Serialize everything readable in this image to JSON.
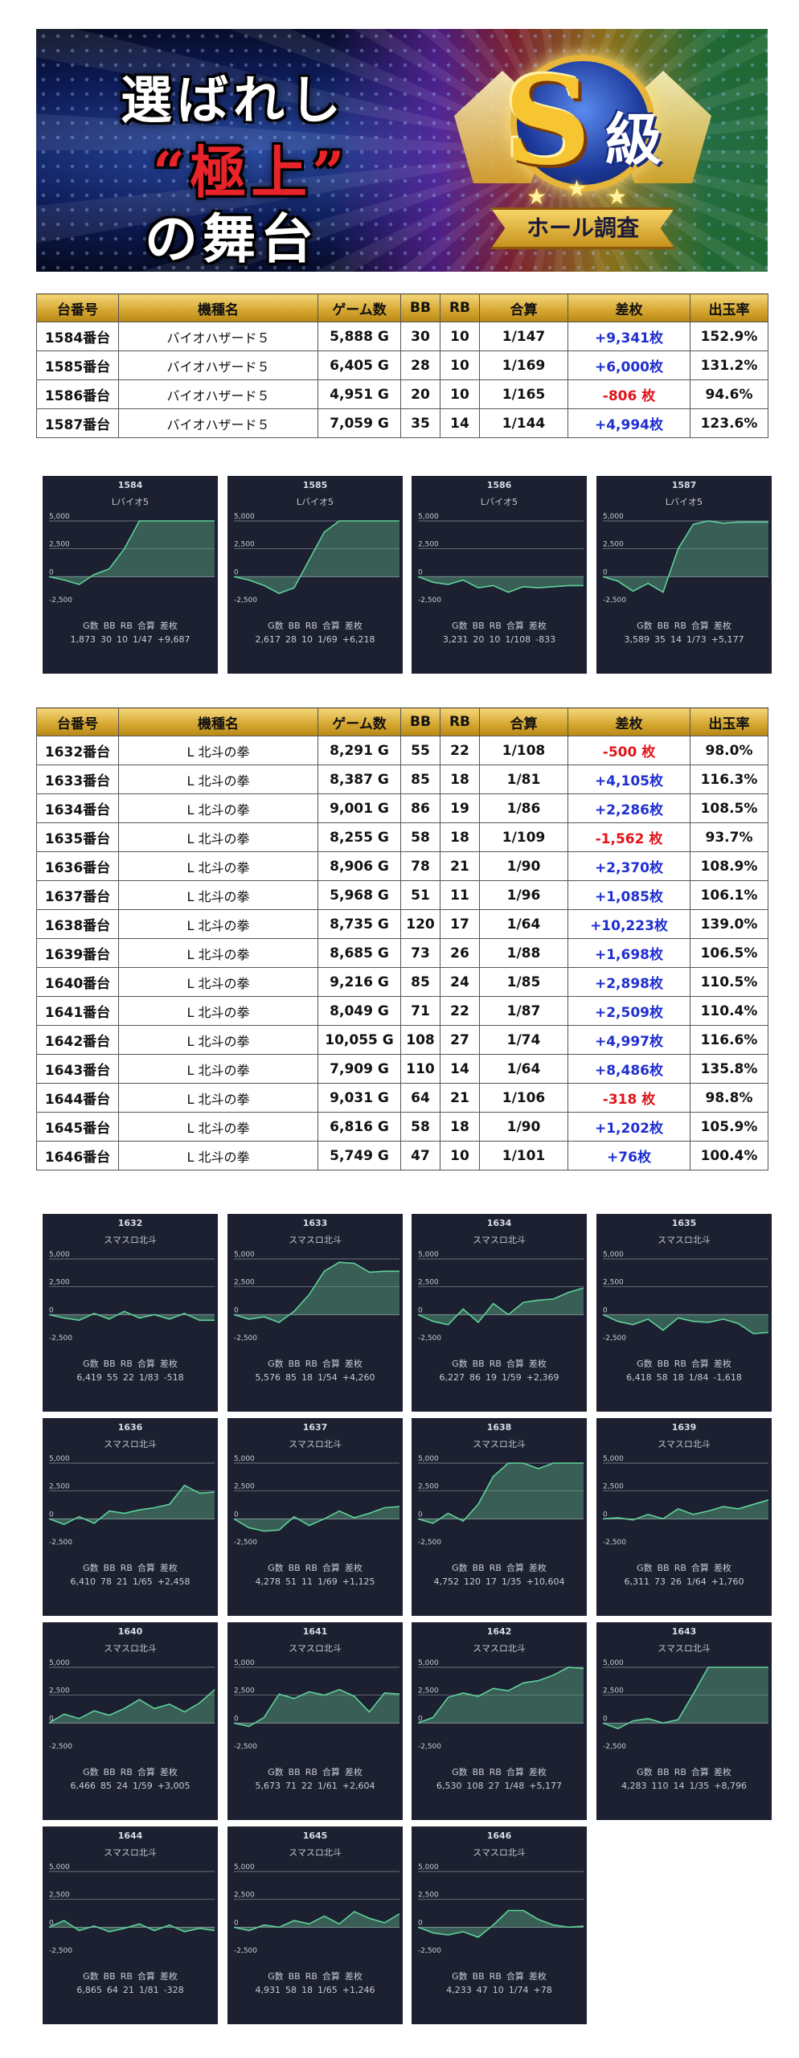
{
  "banner": {
    "title_line1": "選ばれし",
    "title_line2": "“極上”",
    "title_line3": "の舞台",
    "emblem_letter": "S",
    "emblem_kanji": "級",
    "ribbon_text": "ホール調査"
  },
  "table_headers": [
    "台番号",
    "機種名",
    "ゲーム数",
    "BB",
    "RB",
    "合算",
    "差枚",
    "出玉率"
  ],
  "table1_rows": [
    {
      "machine_no": "1584番台",
      "model": "バイオハザード５",
      "games": "5,888 G",
      "bb": "30",
      "rb": "10",
      "combined": "1/147",
      "diff": "+9,341枚",
      "rate": "152.9%",
      "sign": "pos"
    },
    {
      "machine_no": "1585番台",
      "model": "バイオハザード５",
      "games": "6,405 G",
      "bb": "28",
      "rb": "10",
      "combined": "1/169",
      "diff": "+6,000枚",
      "rate": "131.2%",
      "sign": "pos"
    },
    {
      "machine_no": "1586番台",
      "model": "バイオハザード５",
      "games": "4,951 G",
      "bb": "20",
      "rb": "10",
      "combined": "1/165",
      "diff": "-806 枚",
      "rate": "94.6%",
      "sign": "neg"
    },
    {
      "machine_no": "1587番台",
      "model": "バイオハザード５",
      "games": "7,059 G",
      "bb": "35",
      "rb": "14",
      "combined": "1/144",
      "diff": "+4,994枚",
      "rate": "123.6%",
      "sign": "pos"
    }
  ],
  "table2_rows": [
    {
      "machine_no": "1632番台",
      "model": "L 北斗の拳",
      "games": "8,291 G",
      "bb": "55",
      "rb": "22",
      "combined": "1/108",
      "diff": "-500 枚",
      "rate": "98.0%",
      "sign": "neg"
    },
    {
      "machine_no": "1633番台",
      "model": "L 北斗の拳",
      "games": "8,387 G",
      "bb": "85",
      "rb": "18",
      "combined": "1/81",
      "diff": "+4,105枚",
      "rate": "116.3%",
      "sign": "pos"
    },
    {
      "machine_no": "1634番台",
      "model": "L 北斗の拳",
      "games": "9,001 G",
      "bb": "86",
      "rb": "19",
      "combined": "1/86",
      "diff": "+2,286枚",
      "rate": "108.5%",
      "sign": "pos"
    },
    {
      "machine_no": "1635番台",
      "model": "L 北斗の拳",
      "games": "8,255 G",
      "bb": "58",
      "rb": "18",
      "combined": "1/109",
      "diff": "-1,562 枚",
      "rate": "93.7%",
      "sign": "neg"
    },
    {
      "machine_no": "1636番台",
      "model": "L 北斗の拳",
      "games": "8,906 G",
      "bb": "78",
      "rb": "21",
      "combined": "1/90",
      "diff": "+2,370枚",
      "rate": "108.9%",
      "sign": "pos"
    },
    {
      "machine_no": "1637番台",
      "model": "L 北斗の拳",
      "games": "5,968 G",
      "bb": "51",
      "rb": "11",
      "combined": "1/96",
      "diff": "+1,085枚",
      "rate": "106.1%",
      "sign": "pos"
    },
    {
      "machine_no": "1638番台",
      "model": "L 北斗の拳",
      "games": "8,735 G",
      "bb": "120",
      "rb": "17",
      "combined": "1/64",
      "diff": "+10,223枚",
      "rate": "139.0%",
      "sign": "pos"
    },
    {
      "machine_no": "1639番台",
      "model": "L 北斗の拳",
      "games": "8,685 G",
      "bb": "73",
      "rb": "26",
      "combined": "1/88",
      "diff": "+1,698枚",
      "rate": "106.5%",
      "sign": "pos"
    },
    {
      "machine_no": "1640番台",
      "model": "L 北斗の拳",
      "games": "9,216 G",
      "bb": "85",
      "rb": "24",
      "combined": "1/85",
      "diff": "+2,898枚",
      "rate": "110.5%",
      "sign": "pos"
    },
    {
      "machine_no": "1641番台",
      "model": "L 北斗の拳",
      "games": "8,049 G",
      "bb": "71",
      "rb": "22",
      "combined": "1/87",
      "diff": "+2,509枚",
      "rate": "110.4%",
      "sign": "pos"
    },
    {
      "machine_no": "1642番台",
      "model": "L 北斗の拳",
      "games": "10,055 G",
      "bb": "108",
      "rb": "27",
      "combined": "1/74",
      "diff": "+4,997枚",
      "rate": "116.6%",
      "sign": "pos"
    },
    {
      "machine_no": "1643番台",
      "model": "L 北斗の拳",
      "games": "7,909 G",
      "bb": "110",
      "rb": "14",
      "combined": "1/64",
      "diff": "+8,486枚",
      "rate": "135.8%",
      "sign": "pos"
    },
    {
      "machine_no": "1644番台",
      "model": "L 北斗の拳",
      "games": "9,031 G",
      "bb": "64",
      "rb": "21",
      "combined": "1/106",
      "diff": "-318 枚",
      "rate": "98.8%",
      "sign": "neg"
    },
    {
      "machine_no": "1645番台",
      "model": "L 北斗の拳",
      "games": "6,816 G",
      "bb": "58",
      "rb": "18",
      "combined": "1/90",
      "diff": "+1,202枚",
      "rate": "105.9%",
      "sign": "pos"
    },
    {
      "machine_no": "1646番台",
      "model": "L 北斗の拳",
      "games": "5,749 G",
      "bb": "47",
      "rb": "10",
      "combined": "1/101",
      "diff": "+76枚",
      "rate": "100.4%",
      "sign": "pos"
    }
  ],
  "stat_labels": [
    "G数",
    "BB",
    "RB",
    "合算",
    "差枚"
  ],
  "chart_data": [
    {
      "type": "area",
      "number": "1584",
      "name": "Lバイオ5",
      "y_ticks": [
        "5,000",
        "2,500",
        "0",
        "-2,500"
      ],
      "ylim": [
        -2500,
        5000
      ],
      "y": [
        0,
        -300,
        -700,
        200,
        700,
        2500,
        5000,
        5000,
        5000,
        5000,
        5000,
        5000
      ],
      "stats": [
        "1,873",
        "30",
        "10",
        "1/47",
        "+9,687"
      ]
    },
    {
      "type": "area",
      "number": "1585",
      "name": "Lバイオ5",
      "y_ticks": [
        "5,000",
        "2,500",
        "0",
        "-2,500"
      ],
      "ylim": [
        -2500,
        5000
      ],
      "y": [
        0,
        -300,
        -800,
        -1500,
        -1000,
        1500,
        4000,
        5000,
        5000,
        5000,
        5000,
        5000
      ],
      "stats": [
        "2,617",
        "28",
        "10",
        "1/69",
        "+6,218"
      ]
    },
    {
      "type": "area",
      "number": "1586",
      "name": "Lバイオ5",
      "y_ticks": [
        "5,000",
        "2,500",
        "0",
        "-2,500"
      ],
      "ylim": [
        -2500,
        5000
      ],
      "y": [
        0,
        -500,
        -700,
        -300,
        -1000,
        -800,
        -1400,
        -900,
        -1000,
        -900,
        -800,
        -800
      ],
      "stats": [
        "3,231",
        "20",
        "10",
        "1/108",
        "-833"
      ]
    },
    {
      "type": "area",
      "number": "1587",
      "name": "Lバイオ5",
      "y_ticks": [
        "5,000",
        "2,500",
        "0",
        "-2,500"
      ],
      "ylim": [
        -2500,
        5000
      ],
      "y": [
        0,
        -400,
        -1300,
        -600,
        -1400,
        2500,
        4700,
        5000,
        4800,
        4900,
        4900,
        4900
      ],
      "stats": [
        "3,589",
        "35",
        "14",
        "1/73",
        "+5,177"
      ]
    },
    {
      "type": "area",
      "number": "1632",
      "name": "スマスロ北斗",
      "y_ticks": [
        "5,000",
        "2,500",
        "0",
        "-2,500"
      ],
      "ylim": [
        -2500,
        5000
      ],
      "y": [
        0,
        -300,
        -500,
        100,
        -400,
        300,
        -300,
        0,
        -400,
        100,
        -500,
        -500
      ],
      "stats": [
        "6,419",
        "55",
        "22",
        "1/83",
        "-518"
      ]
    },
    {
      "type": "area",
      "number": "1633",
      "name": "スマスロ北斗",
      "y_ticks": [
        "5,000",
        "2,500",
        "0",
        "-2,500"
      ],
      "ylim": [
        -2500,
        5000
      ],
      "y": [
        0,
        -400,
        -200,
        -700,
        300,
        1800,
        3900,
        4700,
        4600,
        3800,
        3900,
        3900
      ],
      "stats": [
        "5,576",
        "85",
        "18",
        "1/54",
        "+4,260"
      ]
    },
    {
      "type": "area",
      "number": "1634",
      "name": "スマスロ北斗",
      "y_ticks": [
        "5,000",
        "2,500",
        "0",
        "-2,500"
      ],
      "ylim": [
        -2500,
        5000
      ],
      "y": [
        0,
        -600,
        -900,
        500,
        -700,
        1000,
        0,
        1100,
        1300,
        1400,
        2000,
        2400
      ],
      "stats": [
        "6,227",
        "86",
        "19",
        "1/59",
        "+2,369"
      ]
    },
    {
      "type": "area",
      "number": "1635",
      "name": "スマスロ北斗",
      "y_ticks": [
        "5,000",
        "2,500",
        "0",
        "-2,500"
      ],
      "ylim": [
        -2500,
        5000
      ],
      "y": [
        0,
        -600,
        -900,
        -400,
        -1400,
        -300,
        -600,
        -700,
        -400,
        -800,
        -1700,
        -1600
      ],
      "stats": [
        "6,418",
        "58",
        "18",
        "1/84",
        "-1,618"
      ]
    },
    {
      "type": "area",
      "number": "1636",
      "name": "スマスロ北斗",
      "y_ticks": [
        "5,000",
        "2,500",
        "0",
        "-2,500"
      ],
      "ylim": [
        -2500,
        5000
      ],
      "y": [
        0,
        -500,
        200,
        -400,
        700,
        500,
        800,
        1000,
        1300,
        3000,
        2300,
        2400
      ],
      "stats": [
        "6,410",
        "78",
        "21",
        "1/65",
        "+2,458"
      ]
    },
    {
      "type": "area",
      "number": "1637",
      "name": "スマスロ北斗",
      "y_ticks": [
        "5,000",
        "2,500",
        "0",
        "-2,500"
      ],
      "ylim": [
        -2500,
        5000
      ],
      "y": [
        0,
        -800,
        -1100,
        -1000,
        200,
        -600,
        0,
        700,
        100,
        500,
        1000,
        1100
      ],
      "stats": [
        "4,278",
        "51",
        "11",
        "1/69",
        "+1,125"
      ]
    },
    {
      "type": "area",
      "number": "1638",
      "name": "スマスロ北斗",
      "y_ticks": [
        "5,000",
        "2,500",
        "0",
        "-2,500"
      ],
      "ylim": [
        -2500,
        5000
      ],
      "y": [
        0,
        -400,
        500,
        -200,
        1300,
        3800,
        5000,
        5000,
        4500,
        5000,
        5000,
        5000
      ],
      "stats": [
        "4,752",
        "120",
        "17",
        "1/35",
        "+10,604"
      ]
    },
    {
      "type": "area",
      "number": "1639",
      "name": "スマスロ北斗",
      "y_ticks": [
        "5,000",
        "2,500",
        "0",
        "-2,500"
      ],
      "ylim": [
        -2500,
        5000
      ],
      "y": [
        0,
        100,
        -100,
        400,
        0,
        900,
        400,
        700,
        1100,
        900,
        1300,
        1700
      ],
      "stats": [
        "6,311",
        "73",
        "26",
        "1/64",
        "+1,760"
      ]
    },
    {
      "type": "area",
      "number": "1640",
      "name": "スマスロ北斗",
      "y_ticks": [
        "5,000",
        "2,500",
        "0",
        "-2,500"
      ],
      "ylim": [
        -2500,
        5000
      ],
      "y": [
        0,
        800,
        400,
        1100,
        700,
        1300,
        2100,
        1300,
        1700,
        1000,
        1800,
        3000
      ],
      "stats": [
        "6,466",
        "85",
        "24",
        "1/59",
        "+3,005"
      ]
    },
    {
      "type": "area",
      "number": "1641",
      "name": "スマスロ北斗",
      "y_ticks": [
        "5,000",
        "2,500",
        "0",
        "-2,500"
      ],
      "ylim": [
        -2500,
        5000
      ],
      "y": [
        0,
        -300,
        500,
        2600,
        2200,
        2800,
        2500,
        3000,
        2400,
        1000,
        2700,
        2600
      ],
      "stats": [
        "5,673",
        "71",
        "22",
        "1/61",
        "+2,604"
      ]
    },
    {
      "type": "area",
      "number": "1642",
      "name": "スマスロ北斗",
      "y_ticks": [
        "5,000",
        "2,500",
        "0",
        "-2,500"
      ],
      "ylim": [
        -2500,
        5000
      ],
      "y": [
        0,
        500,
        2300,
        2700,
        2400,
        3100,
        2900,
        3600,
        3800,
        4300,
        5000,
        4900
      ],
      "stats": [
        "6,530",
        "108",
        "27",
        "1/48",
        "+5,177"
      ]
    },
    {
      "type": "area",
      "number": "1643",
      "name": "スマスロ北斗",
      "y_ticks": [
        "5,000",
        "2,500",
        "0",
        "-2,500"
      ],
      "ylim": [
        -2500,
        5000
      ],
      "y": [
        0,
        -500,
        200,
        400,
        0,
        300,
        2600,
        5000,
        5000,
        5000,
        5000,
        5000
      ],
      "stats": [
        "4,283",
        "110",
        "14",
        "1/35",
        "+8,796"
      ]
    },
    {
      "type": "area",
      "number": "1644",
      "name": "スマスロ北斗",
      "y_ticks": [
        "5,000",
        "2,500",
        "0",
        "-2,500"
      ],
      "ylim": [
        -2500,
        5000
      ],
      "y": [
        0,
        600,
        -300,
        100,
        -400,
        -100,
        300,
        -300,
        200,
        -400,
        -100,
        -300
      ],
      "stats": [
        "6,865",
        "64",
        "21",
        "1/81",
        "-328"
      ]
    },
    {
      "type": "area",
      "number": "1645",
      "name": "スマスロ北斗",
      "y_ticks": [
        "5,000",
        "2,500",
        "0",
        "-2,500"
      ],
      "ylim": [
        -2500,
        5000
      ],
      "y": [
        0,
        -300,
        200,
        0,
        600,
        300,
        1000,
        300,
        1400,
        800,
        400,
        1200
      ],
      "stats": [
        "4,931",
        "58",
        "18",
        "1/65",
        "+1,246"
      ]
    },
    {
      "type": "area",
      "number": "1646",
      "name": "スマスロ北斗",
      "y_ticks": [
        "5,000",
        "2,500",
        "0",
        "-2,500"
      ],
      "ylim": [
        -2500,
        5000
      ],
      "y": [
        0,
        -500,
        -700,
        -400,
        -900,
        200,
        1500,
        1500,
        700,
        200,
        0,
        100
      ],
      "stats": [
        "4,233",
        "47",
        "10",
        "1/74",
        "+78"
      ]
    }
  ]
}
